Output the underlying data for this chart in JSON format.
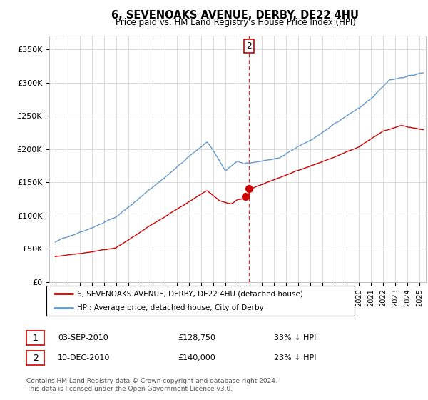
{
  "title": "6, SEVENOAKS AVENUE, DERBY, DE22 4HU",
  "subtitle": "Price paid vs. HM Land Registry's House Price Index (HPI)",
  "ylabel_ticks": [
    "£0",
    "£50K",
    "£100K",
    "£150K",
    "£200K",
    "£250K",
    "£300K",
    "£350K"
  ],
  "ylim": [
    0,
    370000
  ],
  "xlim_start": 1994.5,
  "xlim_end": 2025.5,
  "red_line_color": "#cc0000",
  "blue_line_color": "#6699cc",
  "dashed_line_color": "#cc0000",
  "transaction1_date": "03-SEP-2010",
  "transaction1_price": "£128,750",
  "transaction1_pct": "33% ↓ HPI",
  "transaction1_x": 2010.67,
  "transaction1_y": 128750,
  "transaction2_date": "10-DEC-2010",
  "transaction2_price": "£140,000",
  "transaction2_pct": "23% ↓ HPI",
  "transaction2_x": 2010.92,
  "transaction2_y": 140000,
  "legend_label_red": "6, SEVENOAKS AVENUE, DERBY, DE22 4HU (detached house)",
  "legend_label_blue": "HPI: Average price, detached house, City of Derby",
  "footer": "Contains HM Land Registry data © Crown copyright and database right 2024.\nThis data is licensed under the Open Government Licence v3.0.",
  "background_color": "#ffffff",
  "grid_color": "#cccccc"
}
